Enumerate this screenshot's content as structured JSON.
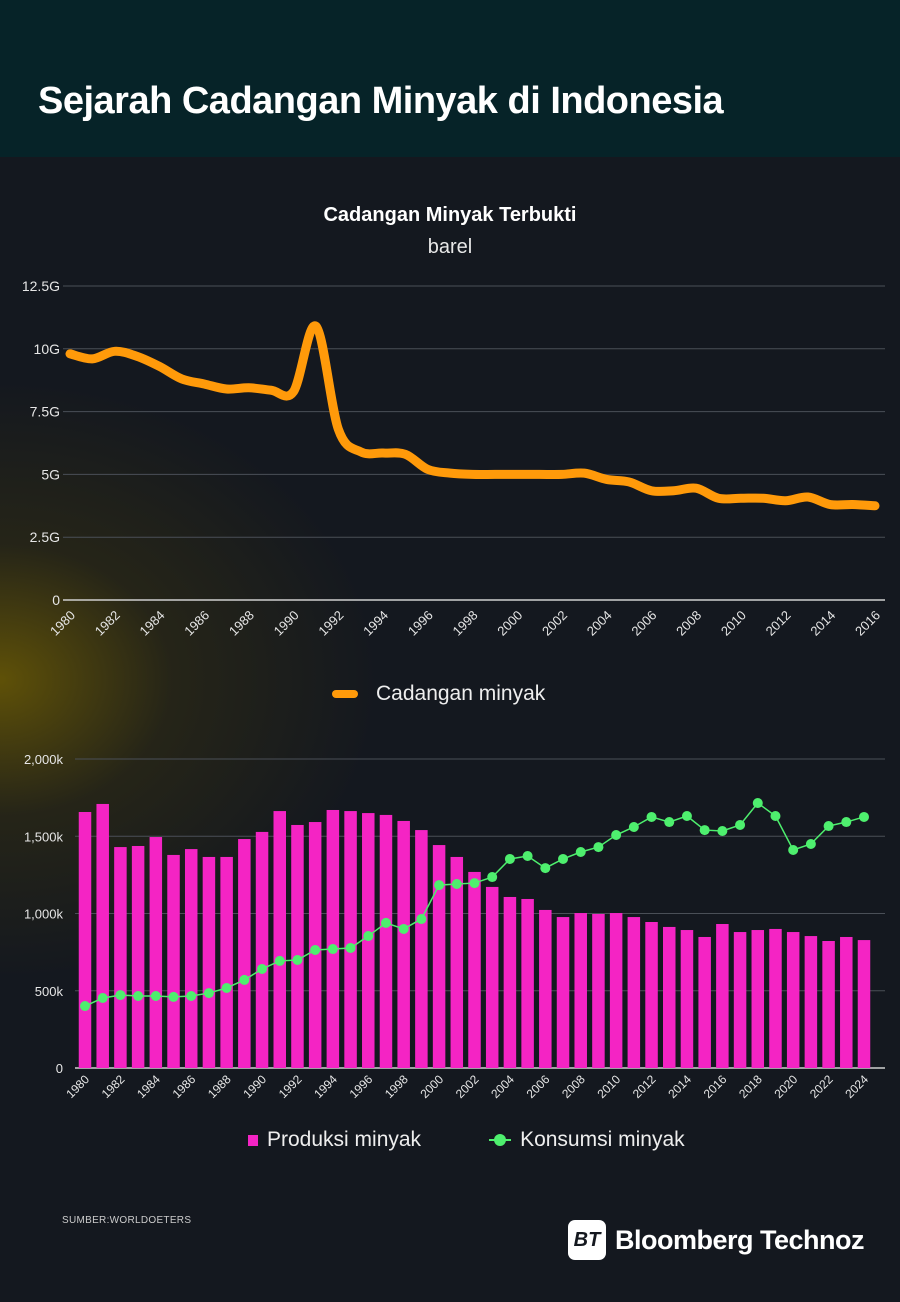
{
  "header": {
    "title": "Sejarah Cadangan Minyak di Indonesia"
  },
  "footer": {
    "source": "SUMBER:WORLDOETERS",
    "brand": "Bloomberg Technoz",
    "brand_mark": "BT"
  },
  "colors": {
    "reserves": "#ff9a0a",
    "production": "#f424c4",
    "consumption": "#4eef6e",
    "header_bg": "#062328",
    "bg": "#14181f"
  },
  "chart_data": [
    {
      "type": "line",
      "title": "Cadangan Minyak Terbukti",
      "subtitle": "barel",
      "xlabel": "",
      "ylabel": "",
      "ylim": [
        0,
        12.5
      ],
      "y_ticks": [
        {
          "v": 0,
          "label": "0"
        },
        {
          "v": 2.5,
          "label": "2.5G"
        },
        {
          "v": 5,
          "label": "5G"
        },
        {
          "v": 7.5,
          "label": "7.5G"
        },
        {
          "v": 10,
          "label": "10G"
        },
        {
          "v": 12.5,
          "label": "12.5G"
        }
      ],
      "x_ticks": [
        "1980",
        "1982",
        "1984",
        "1986",
        "1988",
        "1990",
        "1992",
        "1994",
        "1996",
        "1998",
        "2000",
        "2002",
        "2004",
        "2006",
        "2008",
        "2010",
        "2012",
        "2014",
        "2016"
      ],
      "grid": true,
      "legend": "bottom",
      "x": [
        1980,
        1981,
        1982,
        1983,
        1984,
        1985,
        1986,
        1987,
        1988,
        1989,
        1990,
        1991,
        1992,
        1993,
        1994,
        1995,
        1996,
        1997,
        1998,
        1999,
        2000,
        2001,
        2002,
        2003,
        2004,
        2005,
        2006,
        2007,
        2008,
        2009,
        2010,
        2011,
        2012,
        2013,
        2014,
        2015,
        2016
      ],
      "series": [
        {
          "name": "Cadangan minyak",
          "unit": "G barel",
          "values": [
            9.8,
            9.6,
            9.9,
            9.7,
            9.3,
            8.8,
            8.6,
            8.4,
            8.45,
            8.35,
            8.3,
            10.9,
            6.8,
            5.9,
            5.85,
            5.8,
            5.2,
            5.05,
            5.0,
            5.0,
            5.0,
            5.0,
            5.0,
            5.05,
            4.8,
            4.7,
            4.35,
            4.35,
            4.45,
            4.05,
            4.05,
            4.05,
            3.95,
            4.1,
            3.8,
            3.8,
            3.75
          ]
        }
      ]
    },
    {
      "type": "bar",
      "title": "",
      "xlabel": "",
      "ylabel": "",
      "ylim": [
        0,
        2000
      ],
      "y_ticks": [
        {
          "v": 0,
          "label": "0"
        },
        {
          "v": 500,
          "label": "500k"
        },
        {
          "v": 1000,
          "label": "1,000k"
        },
        {
          "v": 1500,
          "label": "1,500k"
        },
        {
          "v": 2000,
          "label": "2,000k"
        }
      ],
      "x_ticks": [
        "1980",
        "1982",
        "1984",
        "1986",
        "1988",
        "1990",
        "1992",
        "1994",
        "1996",
        "1998",
        "2000",
        "2002",
        "2004",
        "2006",
        "2008",
        "2010",
        "2012",
        "2014",
        "2016",
        "2018",
        "2020",
        "2022",
        "2024"
      ],
      "grid": true,
      "legend": "bottom",
      "categories": [
        1980,
        1981,
        1982,
        1983,
        1984,
        1985,
        1986,
        1987,
        1988,
        1989,
        1990,
        1991,
        1992,
        1993,
        1994,
        1995,
        1996,
        1997,
        1998,
        1999,
        2000,
        2001,
        2002,
        2003,
        2004,
        2005,
        2006,
        2007,
        2008,
        2009,
        2010,
        2011,
        2012,
        2013,
        2014,
        2015,
        2016,
        2017,
        2018,
        2019,
        2020,
        2021,
        2022,
        2023,
        2024
      ],
      "series": [
        {
          "name": "Produksi minyak",
          "kind": "bar",
          "unit": "k barel/hari",
          "values": [
            1657,
            1709,
            1430,
            1437,
            1495,
            1379,
            1417,
            1366,
            1366,
            1482,
            1528,
            1663,
            1573,
            1592,
            1670,
            1663,
            1650,
            1638,
            1599,
            1540,
            1443,
            1366,
            1269,
            1172,
            1107,
            1094,
            1023,
            977,
            1003,
            997,
            1003,
            977,
            945,
            913,
            893,
            848,
            932,
            880,
            893,
            900,
            880,
            854,
            822,
            848,
            828
          ]
        },
        {
          "name": "Konsumsi minyak",
          "kind": "line",
          "unit": "k barel/hari",
          "values": [
            401,
            453,
            472,
            466,
            466,
            460,
            466,
            485,
            518,
            570,
            641,
            693,
            699,
            764,
            770,
            777,
            854,
            939,
            900,
            964,
            1184,
            1191,
            1197,
            1236,
            1353,
            1372,
            1294,
            1353,
            1398,
            1430,
            1508,
            1560,
            1625,
            1592,
            1631,
            1540,
            1534,
            1573,
            1715,
            1631,
            1411,
            1450,
            1566,
            1592,
            1625
          ]
        }
      ]
    }
  ]
}
